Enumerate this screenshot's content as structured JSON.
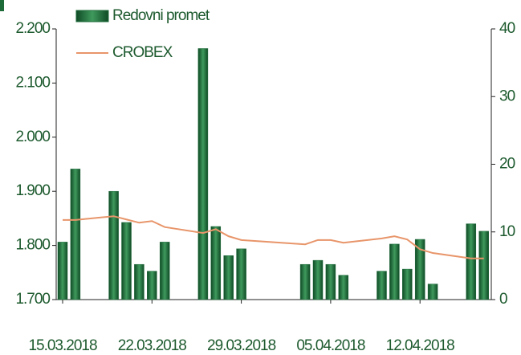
{
  "chart_data": {
    "type": "bar+line",
    "x": [
      "15.03.2018",
      "16.03.2018",
      "19.03.2018",
      "20.03.2018",
      "21.03.2018",
      "22.03.2018",
      "23.03.2018",
      "26.03.2018",
      "27.03.2018",
      "28.03.2018",
      "29.03.2018",
      "03.04.2018",
      "04.04.2018",
      "05.04.2018",
      "06.04.2018",
      "09.04.2018",
      "10.04.2018",
      "11.04.2018",
      "12.04.2018",
      "13.04.2018",
      "16.04.2018",
      "17.04.2018"
    ],
    "xticks": [
      "15.03.2018",
      "22.03.2018",
      "29.03.2018",
      "05.04.2018",
      "12.04.2018"
    ],
    "series": [
      {
        "name": "Redovni promet",
        "type": "bar",
        "axis": "y2",
        "color": "#1e6b3a",
        "values": [
          8.5,
          19.3,
          16.0,
          11.4,
          5.2,
          4.2,
          8.5,
          37.1,
          10.8,
          6.5,
          7.5,
          5.2,
          5.8,
          5.2,
          3.6,
          4.2,
          8.2,
          4.5,
          8.9,
          2.3,
          11.2,
          10.1
        ]
      },
      {
        "name": "CROBEX",
        "type": "line",
        "axis": "y",
        "color": "#e8956a",
        "values": [
          1847,
          1847,
          1854,
          1848,
          1842,
          1845,
          1834,
          1823,
          1830,
          1817,
          1810,
          1802,
          1810,
          1810,
          1805,
          1813,
          1817,
          1811,
          1793,
          1786,
          1776,
          1776
        ]
      }
    ],
    "ylim": [
      1700,
      2200
    ],
    "yticks": [
      {
        "value": 1700,
        "label": "1.700"
      },
      {
        "value": 1800,
        "label": "1.800"
      },
      {
        "value": 1900,
        "label": "1.900"
      },
      {
        "value": 2000,
        "label": "2.000"
      },
      {
        "value": 2100,
        "label": "2.100"
      },
      {
        "value": 2200,
        "label": "2.200"
      }
    ],
    "y2lim": [
      0,
      40
    ],
    "y2ticks": [
      0,
      10,
      20,
      30,
      40
    ],
    "legend": "top"
  }
}
